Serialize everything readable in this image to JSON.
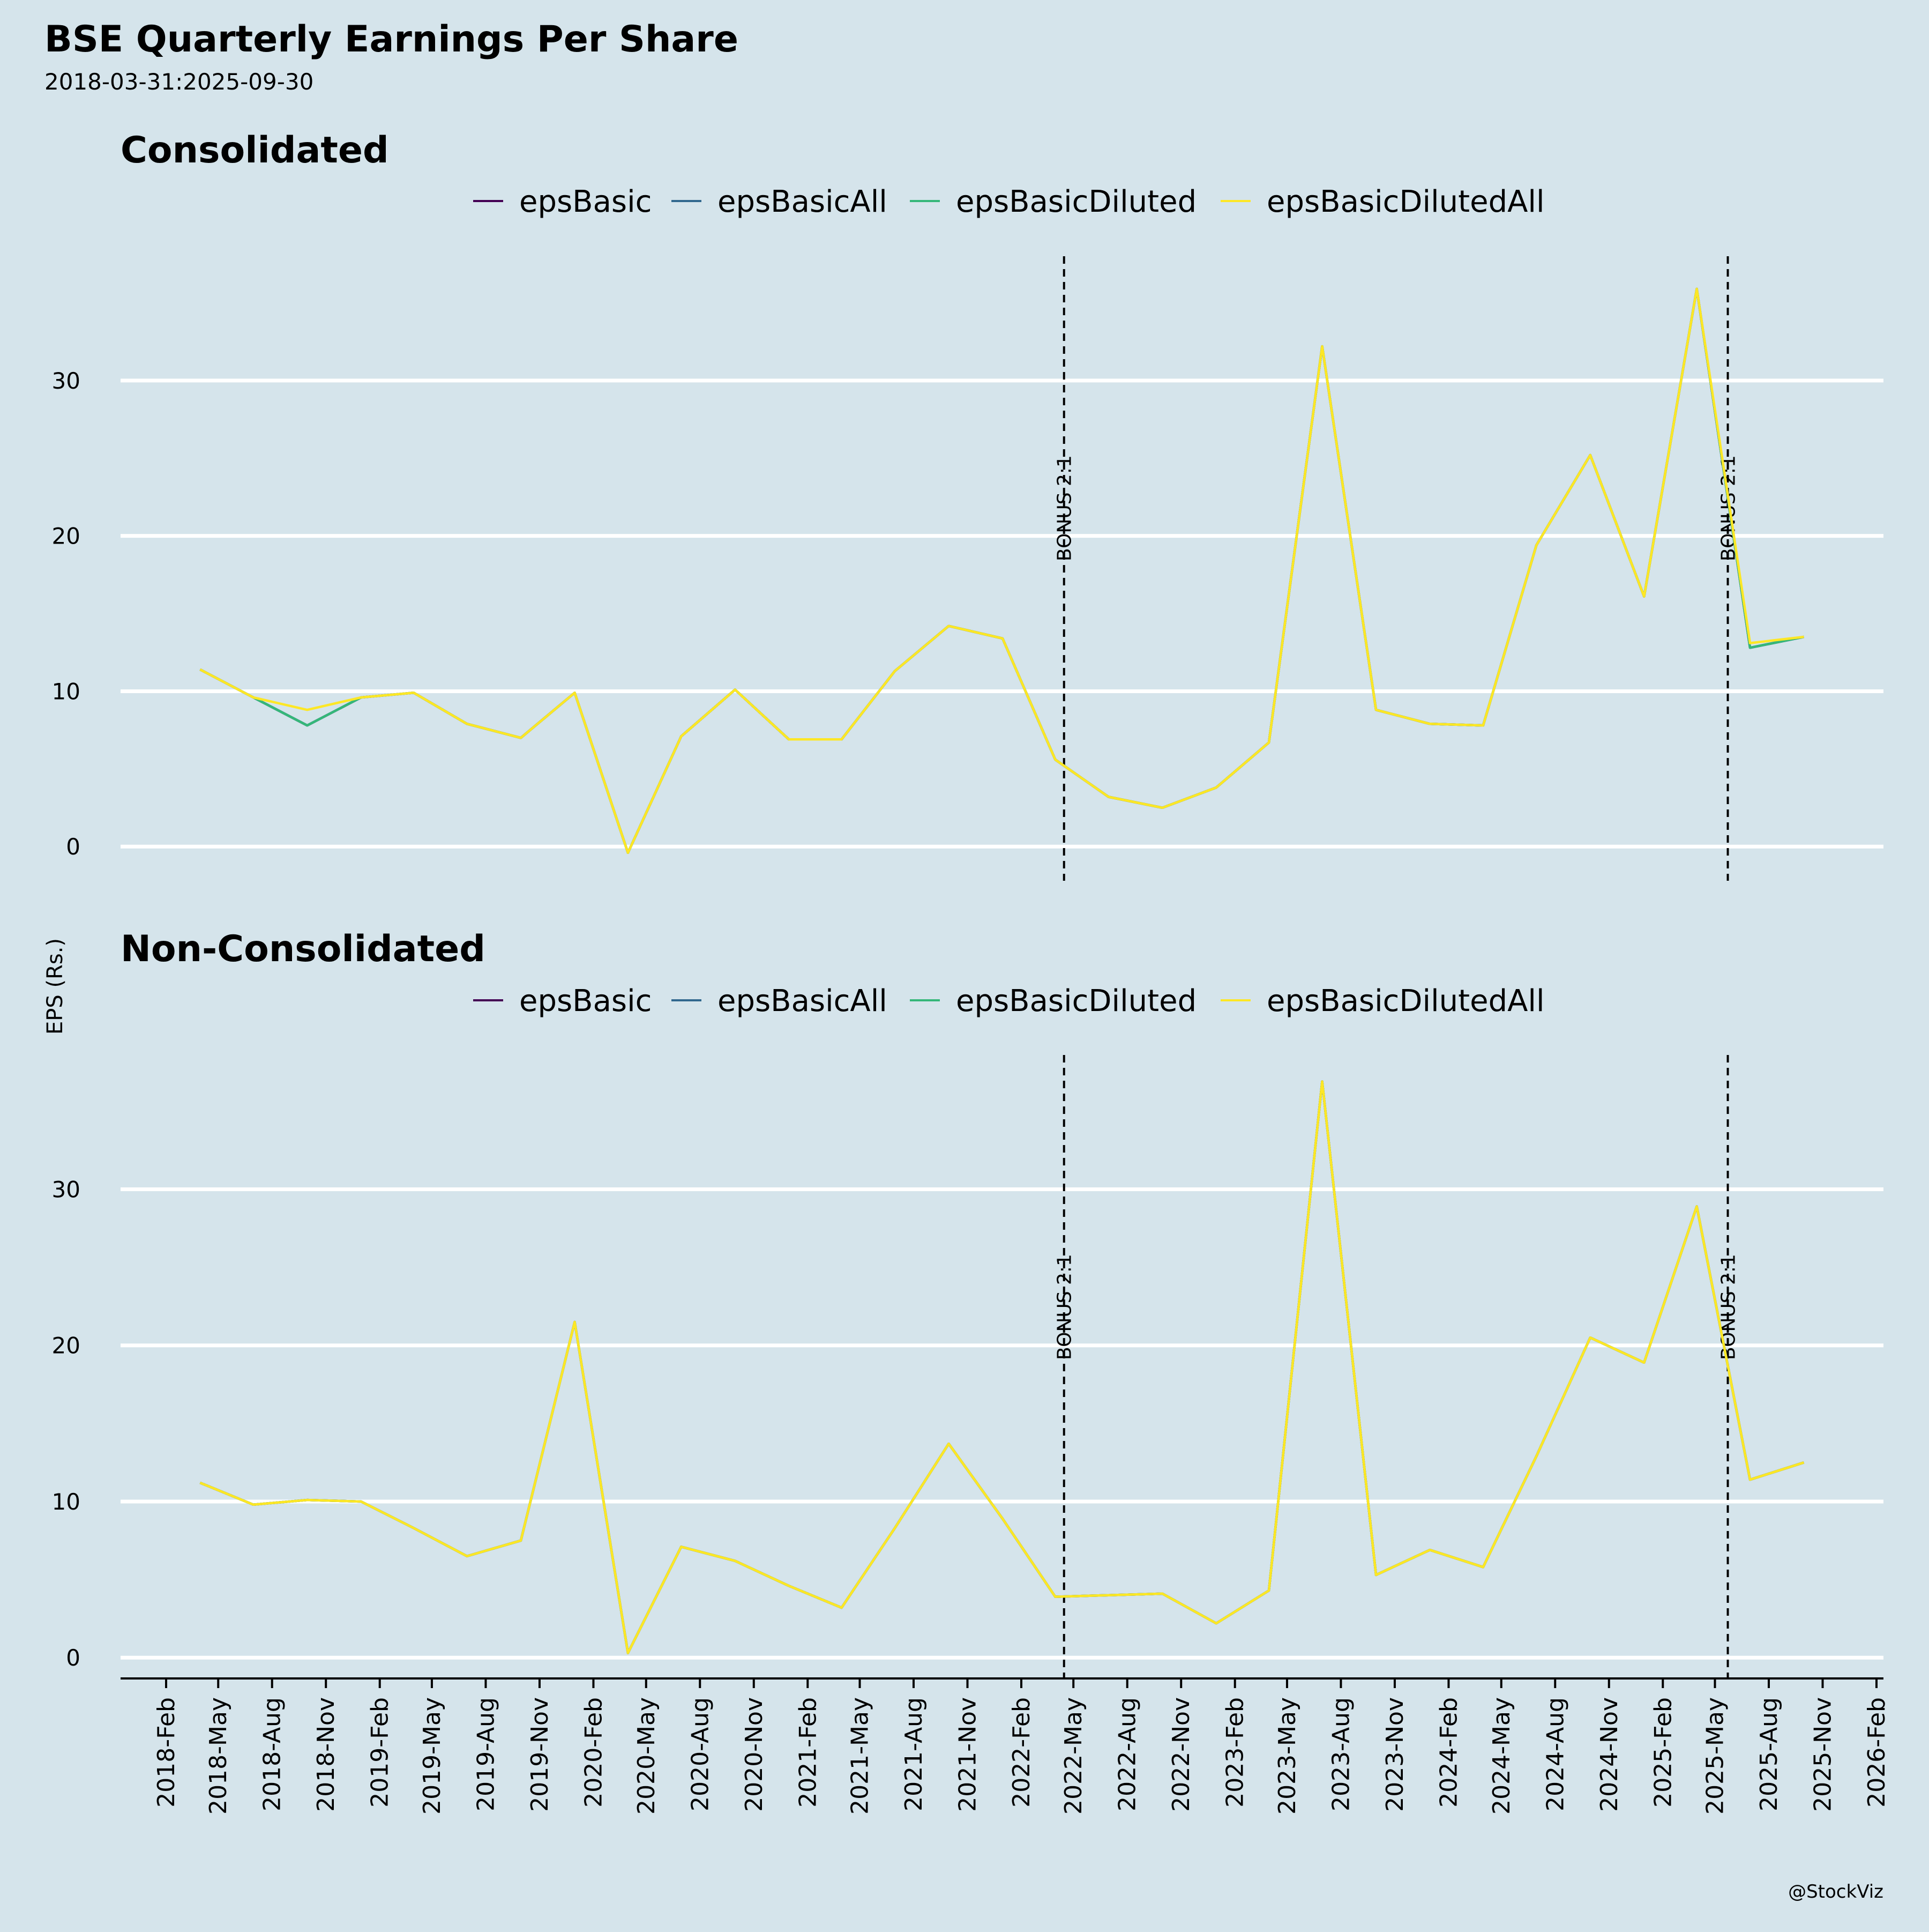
{
  "title": "BSE Quarterly Earnings Per Share",
  "subtitle": "2018-03-31:2025-09-30",
  "ylabel": "EPS (Rs.)",
  "credit": "@StockViz",
  "colors": {
    "background": "#d5e4eb",
    "grid": "#ffffff",
    "epsBasic": "#440154",
    "epsBasicAll": "#31688e",
    "epsBasicDiluted": "#35b779",
    "epsBasicDilutedAll": "#fde725"
  },
  "chart_data": [
    {
      "type": "line",
      "title": "Consolidated",
      "ylabel": "EPS (Rs.)",
      "ylim": [
        -2.2,
        38
      ],
      "yticks": [
        0,
        10,
        20,
        30
      ],
      "grid": true,
      "legend_position": "top-center",
      "xticks": [
        "2018-Feb",
        "2018-May",
        "2018-Aug",
        "2018-Nov",
        "2019-Feb",
        "2019-May",
        "2019-Aug",
        "2019-Nov",
        "2020-Feb",
        "2020-May",
        "2020-Aug",
        "2020-Nov",
        "2021-Feb",
        "2021-May",
        "2021-Aug",
        "2021-Nov",
        "2022-Feb",
        "2022-May",
        "2022-Aug",
        "2022-Nov",
        "2023-Feb",
        "2023-May",
        "2023-Aug",
        "2023-Nov",
        "2024-Feb",
        "2024-May",
        "2024-Aug",
        "2024-Nov",
        "2025-Feb",
        "2025-May",
        "2025-Aug",
        "2025-Nov",
        "2026-Feb"
      ],
      "x": [
        "2018-03-31",
        "2018-06-30",
        "2018-09-30",
        "2018-12-31",
        "2019-03-31",
        "2019-06-30",
        "2019-09-30",
        "2019-12-31",
        "2020-03-31",
        "2020-06-30",
        "2020-09-30",
        "2020-12-31",
        "2021-03-31",
        "2021-06-30",
        "2021-09-30",
        "2021-12-31",
        "2022-03-31",
        "2022-06-30",
        "2022-09-30",
        "2022-12-31",
        "2023-03-31",
        "2023-06-30",
        "2023-09-30",
        "2023-12-31",
        "2024-03-31",
        "2024-06-30",
        "2024-09-30",
        "2024-12-31",
        "2025-03-31",
        "2025-06-30",
        "2025-09-30"
      ],
      "annotations": [
        {
          "label": "BONUS 2:1",
          "x": "2022-04-15"
        },
        {
          "label": "BONUS 2:1",
          "x": "2025-05-23"
        }
      ],
      "series": [
        {
          "name": "epsBasic",
          "values": [
            11.4,
            9.6,
            7.8,
            9.6,
            9.9,
            7.9,
            7.0,
            9.9,
            -0.4,
            7.1,
            10.1,
            6.9,
            6.9,
            11.3,
            14.2,
            13.4,
            5.6,
            3.2,
            2.5,
            3.8,
            6.7,
            32.2,
            8.8,
            7.9,
            7.8,
            19.4,
            25.2,
            16.1,
            35.9,
            12.8,
            13.5
          ]
        },
        {
          "name": "epsBasicAll",
          "values": [
            11.4,
            9.6,
            7.8,
            9.6,
            9.9,
            7.9,
            7.0,
            9.9,
            -0.4,
            7.1,
            10.1,
            6.9,
            6.9,
            11.3,
            14.2,
            13.4,
            5.6,
            3.2,
            2.5,
            3.8,
            6.7,
            32.2,
            8.8,
            7.9,
            7.8,
            19.4,
            25.2,
            16.1,
            35.9,
            12.8,
            13.5
          ]
        },
        {
          "name": "epsBasicDiluted",
          "values": [
            11.4,
            9.6,
            7.8,
            9.6,
            9.9,
            7.9,
            7.0,
            9.9,
            -0.4,
            7.1,
            10.1,
            6.9,
            6.9,
            11.3,
            14.2,
            13.4,
            5.6,
            3.2,
            2.5,
            3.8,
            6.7,
            32.2,
            8.8,
            7.9,
            7.8,
            19.4,
            25.2,
            16.1,
            35.9,
            12.8,
            13.5
          ]
        },
        {
          "name": "epsBasicDilutedAll",
          "values": [
            11.4,
            9.6,
            8.8,
            9.6,
            9.9,
            7.9,
            7.0,
            9.9,
            -0.4,
            7.1,
            10.1,
            6.9,
            6.9,
            11.3,
            14.2,
            13.4,
            5.6,
            3.2,
            2.5,
            3.8,
            6.7,
            32.2,
            8.8,
            7.9,
            7.8,
            19.4,
            25.2,
            16.1,
            35.9,
            13.1,
            13.5
          ]
        }
      ]
    },
    {
      "type": "line",
      "title": "Non-Consolidated",
      "ylabel": "EPS (Rs.)",
      "ylim": [
        -1.4,
        38.6
      ],
      "yticks": [
        0,
        10,
        20,
        30
      ],
      "grid": true,
      "legend_position": "top-center",
      "xticks": [
        "2018-Feb",
        "2018-May",
        "2018-Aug",
        "2018-Nov",
        "2019-Feb",
        "2019-May",
        "2019-Aug",
        "2019-Nov",
        "2020-Feb",
        "2020-May",
        "2020-Aug",
        "2020-Nov",
        "2021-Feb",
        "2021-May",
        "2021-Aug",
        "2021-Nov",
        "2022-Feb",
        "2022-May",
        "2022-Aug",
        "2022-Nov",
        "2023-Feb",
        "2023-May",
        "2023-Aug",
        "2023-Nov",
        "2024-Feb",
        "2024-May",
        "2024-Aug",
        "2024-Nov",
        "2025-Feb",
        "2025-May",
        "2025-Aug",
        "2025-Nov",
        "2026-Feb"
      ],
      "x": [
        "2018-03-31",
        "2018-06-30",
        "2018-09-30",
        "2018-12-31",
        "2019-03-31",
        "2019-06-30",
        "2019-09-30",
        "2019-12-31",
        "2020-03-31",
        "2020-06-30",
        "2020-09-30",
        "2020-12-31",
        "2021-03-31",
        "2021-06-30",
        "2021-09-30",
        "2021-12-31",
        "2022-03-31",
        "2022-06-30",
        "2022-09-30",
        "2022-12-31",
        "2023-03-31",
        "2023-06-30",
        "2023-09-30",
        "2023-12-31",
        "2024-03-31",
        "2024-06-30",
        "2024-09-30",
        "2024-12-31",
        "2025-03-31",
        "2025-06-30",
        "2025-09-30"
      ],
      "annotations": [
        {
          "label": "BONUS 2:1",
          "x": "2022-04-15"
        },
        {
          "label": "BONUS 2:1",
          "x": "2025-05-23"
        }
      ],
      "series": [
        {
          "name": "epsBasic",
          "values": [
            11.2,
            9.8,
            10.1,
            10.0,
            8.3,
            6.5,
            7.5,
            21.5,
            0.3,
            7.1,
            6.2,
            4.6,
            3.2,
            8.3,
            13.7,
            8.9,
            3.9,
            4.0,
            4.1,
            2.2,
            4.3,
            36.9,
            5.3,
            6.9,
            5.8,
            12.9,
            20.5,
            18.9,
            28.9,
            11.4,
            12.5
          ]
        },
        {
          "name": "epsBasicAll",
          "values": [
            11.2,
            9.8,
            10.1,
            10.0,
            8.3,
            6.5,
            7.5,
            21.5,
            0.3,
            7.1,
            6.2,
            4.6,
            3.2,
            8.3,
            13.7,
            8.9,
            3.9,
            4.0,
            4.1,
            2.2,
            4.3,
            36.9,
            5.3,
            6.9,
            5.8,
            12.9,
            20.5,
            18.9,
            28.9,
            11.4,
            12.5
          ]
        },
        {
          "name": "epsBasicDiluted",
          "values": [
            11.2,
            9.8,
            10.1,
            10.0,
            8.3,
            6.5,
            7.5,
            21.5,
            0.3,
            7.1,
            6.2,
            4.6,
            3.2,
            8.3,
            13.7,
            8.9,
            3.9,
            4.0,
            4.1,
            2.2,
            4.3,
            36.9,
            5.3,
            6.9,
            5.8,
            12.9,
            20.5,
            18.9,
            28.9,
            11.4,
            12.5
          ]
        },
        {
          "name": "epsBasicDilutedAll",
          "values": [
            11.2,
            9.8,
            10.1,
            10.0,
            8.3,
            6.5,
            7.5,
            21.5,
            0.3,
            7.1,
            6.2,
            4.6,
            3.2,
            8.3,
            13.7,
            8.9,
            3.9,
            4.0,
            4.1,
            2.2,
            4.3,
            36.9,
            5.3,
            6.9,
            5.8,
            12.9,
            20.5,
            18.9,
            28.9,
            11.4,
            12.5
          ]
        }
      ]
    }
  ]
}
